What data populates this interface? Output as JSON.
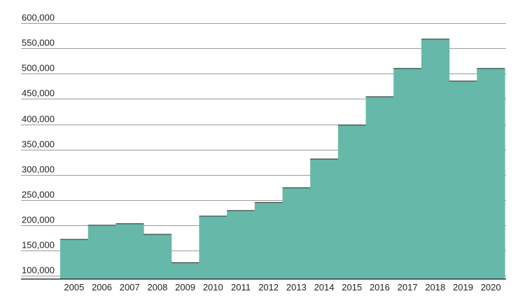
{
  "chart_data": {
    "type": "bar",
    "title": "",
    "xlabel": "",
    "ylabel": "",
    "categories": [
      "2005",
      "2006",
      "2007",
      "2008",
      "2009",
      "2010",
      "2011",
      "2012",
      "2013",
      "2014",
      "2015",
      "2016",
      "2017",
      "2018",
      "2019",
      "2020"
    ],
    "values": [
      173000,
      201000,
      204000,
      183000,
      127000,
      219000,
      230000,
      246000,
      275000,
      332000,
      399000,
      455000,
      511000,
      569000,
      486000,
      511000
    ],
    "ylim": [
      95000,
      600000
    ],
    "yticks": [
      100000,
      150000,
      200000,
      250000,
      300000,
      350000,
      400000,
      450000,
      500000,
      550000,
      600000
    ],
    "ytick_labels": [
      "100,000",
      "150,000",
      "200,000",
      "250,000",
      "300,000",
      "350,000",
      "400,000",
      "450,000",
      "500,000",
      "550,000",
      "600,000"
    ],
    "grid": true,
    "legend": "none",
    "bar_color": "#66b9a8",
    "gap_between_bars": false
  }
}
